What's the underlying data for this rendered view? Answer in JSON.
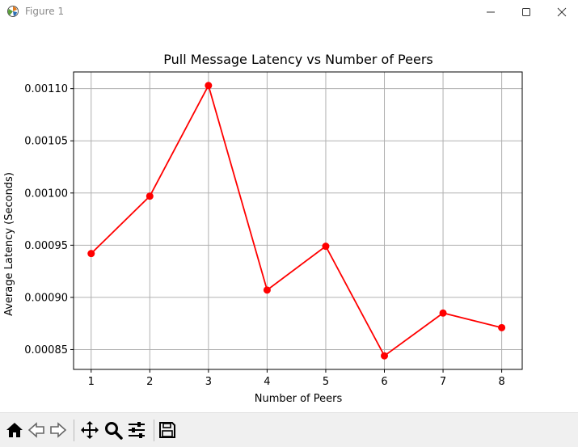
{
  "window": {
    "title": "Figure 1",
    "controls": [
      "minimize-icon",
      "maximize-icon",
      "close-icon"
    ]
  },
  "toolbar": {
    "tools": [
      "home-icon",
      "back-arrow-icon",
      "forward-arrow-icon",
      "pan-move-icon",
      "zoom-magnifier-icon",
      "configure-subplots-icon",
      "save-floppy-icon"
    ]
  },
  "chart_data": {
    "type": "line",
    "title": "Pull Message Latency vs Number of Peers",
    "xlabel": "Number of Peers",
    "ylabel": "Average Latency (Seconds)",
    "x": [
      1,
      2,
      3,
      4,
      5,
      6,
      7,
      8
    ],
    "series": [
      {
        "values": [
          0.000942,
          0.000997,
          0.001103,
          0.000907,
          0.000949,
          0.000844,
          0.000885,
          0.000871
        ],
        "color": "#ff0000",
        "marker": "circle"
      }
    ],
    "xticks": [
      "1",
      "2",
      "3",
      "4",
      "5",
      "6",
      "7",
      "8"
    ],
    "yticks": [
      "0.00085",
      "0.00090",
      "0.00095",
      "0.00100",
      "0.00105",
      "0.00110"
    ],
    "ytick_values": [
      0.00085,
      0.0009,
      0.00095,
      0.001,
      0.00105,
      0.0011
    ],
    "xlim": [
      0.7,
      8.35
    ],
    "ylim": [
      0.000831,
      0.001116
    ],
    "grid": true
  }
}
